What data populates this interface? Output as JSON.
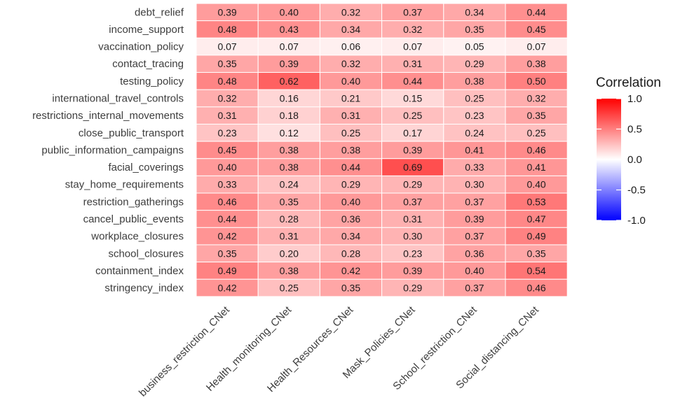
{
  "chart_data": {
    "type": "heatmap",
    "title": "",
    "xlabel": "",
    "ylabel": "",
    "columns": [
      "business_restriction_CNet",
      "Health_monitoring_CNet",
      "Health_Resources_CNet",
      "Mask_Policies_CNet",
      "School_restriction_CNet",
      "Social_distancing_CNet"
    ],
    "rows": [
      "debt_relief",
      "income_support",
      "vaccination_policy",
      "contact_tracing",
      "testing_policy",
      "international_travel_controls",
      "restrictions_internal_movements",
      "close_public_transport",
      "public_information_campaigns",
      "facial_coverings",
      "stay_home_requirements",
      "restriction_gatherings",
      "cancel_public_events",
      "workplace_closures",
      "school_closures",
      "containment_index",
      "stringency_index"
    ],
    "values": [
      [
        0.39,
        0.4,
        0.32,
        0.37,
        0.34,
        0.44
      ],
      [
        0.48,
        0.43,
        0.34,
        0.32,
        0.35,
        0.45
      ],
      [
        0.07,
        0.07,
        0.06,
        0.07,
        0.05,
        0.07
      ],
      [
        0.35,
        0.39,
        0.32,
        0.31,
        0.29,
        0.38
      ],
      [
        0.48,
        0.62,
        0.4,
        0.44,
        0.38,
        0.5
      ],
      [
        0.32,
        0.16,
        0.21,
        0.15,
        0.25,
        0.32
      ],
      [
        0.31,
        0.18,
        0.31,
        0.25,
        0.23,
        0.35
      ],
      [
        0.23,
        0.12,
        0.25,
        0.17,
        0.24,
        0.25
      ],
      [
        0.45,
        0.38,
        0.38,
        0.39,
        0.41,
        0.46
      ],
      [
        0.4,
        0.38,
        0.44,
        0.69,
        0.33,
        0.41
      ],
      [
        0.33,
        0.24,
        0.29,
        0.29,
        0.3,
        0.4
      ],
      [
        0.46,
        0.35,
        0.4,
        0.37,
        0.37,
        0.53
      ],
      [
        0.44,
        0.28,
        0.36,
        0.31,
        0.39,
        0.47
      ],
      [
        0.42,
        0.31,
        0.34,
        0.3,
        0.37,
        0.49
      ],
      [
        0.35,
        0.2,
        0.28,
        0.23,
        0.36,
        0.35
      ],
      [
        0.49,
        0.38,
        0.42,
        0.39,
        0.4,
        0.54
      ],
      [
        0.42,
        0.25,
        0.35,
        0.29,
        0.37,
        0.46
      ]
    ],
    "value_range": [
      -1.0,
      1.0
    ],
    "colors": {
      "low": "#0000ff",
      "mid": "#ffffff",
      "high": "#ff0000"
    },
    "legend": {
      "title": "Correlation",
      "ticks": [
        1.0,
        0.5,
        0.0,
        -0.5,
        -1.0
      ],
      "tick_labels": [
        "1.0",
        "0.5",
        "0.0",
        "-0.5",
        "-1.0"
      ],
      "placement": "right"
    },
    "grid": false
  }
}
